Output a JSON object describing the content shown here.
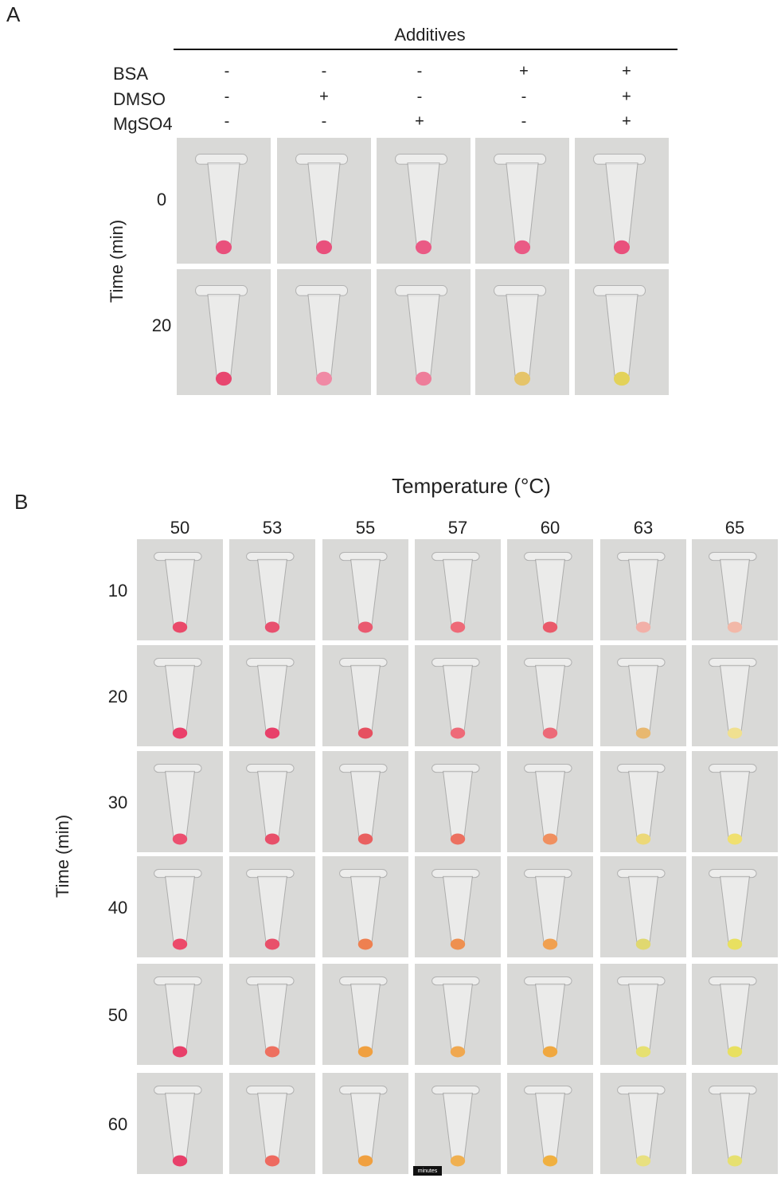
{
  "panel_a": {
    "label": "A",
    "header": "Additives",
    "rows": [
      {
        "name": "BSA",
        "signs": [
          "-",
          "-",
          "-",
          "+",
          "+"
        ]
      },
      {
        "name": "DMSO",
        "signs": [
          "-",
          "+",
          "-",
          "-",
          "+"
        ]
      },
      {
        "name": "MgSO4",
        "signs": [
          "-",
          "-",
          "+",
          "-",
          "+"
        ]
      }
    ],
    "y_label": "Time (min)",
    "times": [
      "0",
      "20"
    ],
    "tube_colors": [
      [
        "#e9507c",
        "#e9507c",
        "#ea5a85",
        "#ea5a85",
        "#e9507c"
      ],
      [
        "#e8466f",
        "#f08aa5",
        "#ee7d9a",
        "#e5c46a",
        "#e3d25a"
      ]
    ]
  },
  "panel_b": {
    "label": "B",
    "header": "Temperature (°C)",
    "temperatures": [
      "50",
      "53",
      "55",
      "57",
      "60",
      "63",
      "65"
    ],
    "y_label": "Time (min)",
    "times": [
      "10",
      "20",
      "30",
      "40",
      "50",
      "60"
    ],
    "stamp": "minutes",
    "tube_colors": [
      [
        "#ea4a6a",
        "#e8506e",
        "#ea5a70",
        "#ee6a78",
        "#ea5a6a",
        "#f2b0a8",
        "#f2b8a8"
      ],
      [
        "#ea406a",
        "#e8406a",
        "#e65060",
        "#ee6a78",
        "#ec6a78",
        "#e8b870",
        "#f0e090"
      ],
      [
        "#ec5070",
        "#e8506a",
        "#e96060",
        "#ec7060",
        "#f09060",
        "#ecd878",
        "#f0e070"
      ],
      [
        "#ec4a6a",
        "#e8506a",
        "#ee8050",
        "#ee9050",
        "#f0a050",
        "#e0d870",
        "#e8e060"
      ],
      [
        "#e8406a",
        "#ee7060",
        "#f0a040",
        "#f0a850",
        "#f0a840",
        "#e6e070",
        "#e8e060"
      ],
      [
        "#e8406a",
        "#ee6a60",
        "#f0a040",
        "#f0b050",
        "#f0b040",
        "#e8e080",
        "#e6e070"
      ]
    ]
  }
}
